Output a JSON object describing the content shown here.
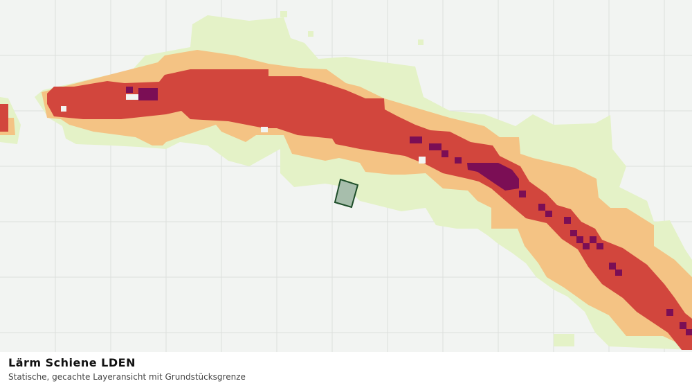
{
  "caption": {
    "title": "Lärm Schiene LDEN",
    "subtitle": "Statische, gecachte Layeransicht mit Grundstücksgrenze"
  }
}
